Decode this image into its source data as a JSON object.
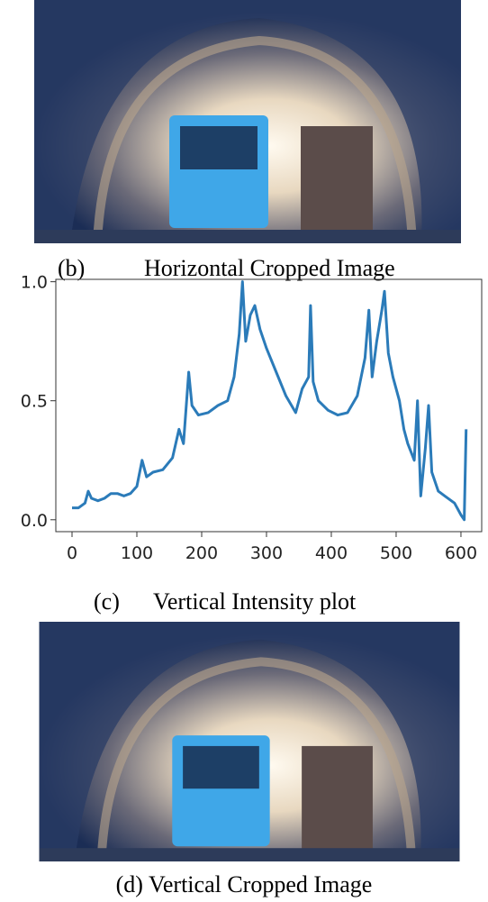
{
  "captions": {
    "b_label": "(b)",
    "b_text": "Horizontal Cropped Image",
    "c_label": "(c)",
    "c_text": "Vertical Intensity plot",
    "d_text": "(d) Vertical Cropped Image"
  },
  "chart_data": {
    "type": "line",
    "color": "#2b7bb9",
    "x": [
      0,
      10,
      20,
      25,
      30,
      40,
      50,
      60,
      70,
      80,
      90,
      100,
      108,
      115,
      125,
      140,
      155,
      165,
      172,
      180,
      185,
      195,
      210,
      225,
      240,
      250,
      258,
      263,
      268,
      275,
      282,
      290,
      300,
      315,
      330,
      345,
      355,
      365,
      368,
      372,
      380,
      395,
      410,
      425,
      440,
      452,
      458,
      463,
      470,
      478,
      482,
      488,
      495,
      505,
      512,
      518,
      528,
      533,
      538,
      545,
      550,
      555,
      565,
      575,
      590,
      600,
      605,
      608
    ],
    "series": [
      {
        "values": [
          0.05,
          0.05,
          0.07,
          0.12,
          0.09,
          0.08,
          0.09,
          0.11,
          0.11,
          0.1,
          0.11,
          0.14,
          0.25,
          0.18,
          0.2,
          0.21,
          0.26,
          0.38,
          0.32,
          0.62,
          0.48,
          0.44,
          0.45,
          0.48,
          0.5,
          0.6,
          0.78,
          1.0,
          0.75,
          0.86,
          0.9,
          0.8,
          0.72,
          0.62,
          0.52,
          0.45,
          0.55,
          0.6,
          0.9,
          0.58,
          0.5,
          0.46,
          0.44,
          0.45,
          0.52,
          0.68,
          0.88,
          0.6,
          0.75,
          0.88,
          0.96,
          0.7,
          0.6,
          0.5,
          0.38,
          0.32,
          0.25,
          0.5,
          0.1,
          0.3,
          0.48,
          0.2,
          0.12,
          0.1,
          0.07,
          0.02,
          0.0,
          0.38
        ]
      }
    ],
    "xlim": [
      -25,
      632
    ],
    "ylim": [
      -0.05,
      1.01
    ],
    "xticks": [
      0,
      100,
      200,
      300,
      400,
      500,
      600
    ],
    "yticks": [
      {
        "value": 0,
        "label": "0.0"
      },
      0.5,
      {
        "value": 1,
        "label": "1.0"
      }
    ]
  }
}
